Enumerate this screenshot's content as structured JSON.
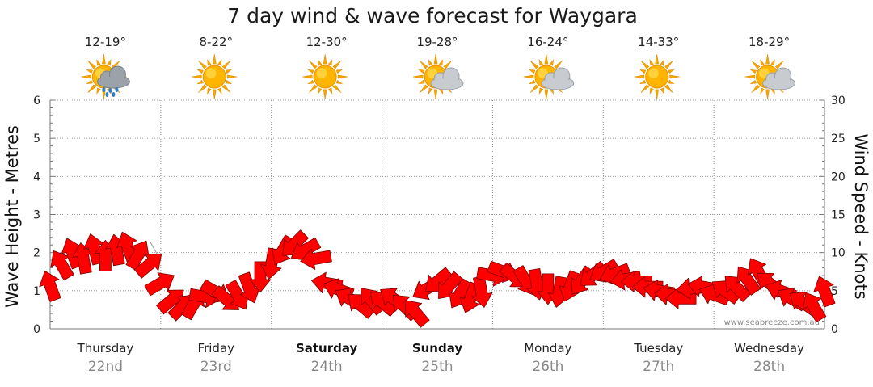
{
  "chart_data": {
    "type": "line",
    "title": "7 day wind & wave forecast for Waygara",
    "ylabel_left": "Wave Height - Metres",
    "ylabel_right": "Wind Speed - Knots",
    "ylim_left": [
      0,
      6
    ],
    "ylim_right": [
      0,
      30
    ],
    "yticks_left": [
      "0",
      "1",
      "2",
      "3",
      "4",
      "5",
      "6"
    ],
    "yticks_right": [
      "0",
      "5",
      "10",
      "15",
      "20",
      "25",
      "30"
    ],
    "grid": true,
    "credit": "www.seabreeze.com.au",
    "days": [
      {
        "day": "Thursday",
        "date": "22nd",
        "temp": "12-19°",
        "icon": "sun-cloud-rain-icon",
        "bold": false
      },
      {
        "day": "Friday",
        "date": "23rd",
        "temp": "8-22°",
        "icon": "sun-icon",
        "bold": false
      },
      {
        "day": "Saturday",
        "date": "24th",
        "temp": "12-30°",
        "icon": "sun-icon",
        "bold": true
      },
      {
        "day": "Sunday",
        "date": "25th",
        "temp": "19-28°",
        "icon": "sun-cloud-icon",
        "bold": true
      },
      {
        "day": "Monday",
        "date": "26th",
        "temp": "16-24°",
        "icon": "sun-cloud-icon",
        "bold": false
      },
      {
        "day": "Tuesday",
        "date": "27th",
        "temp": "14-33°",
        "icon": "sun-icon",
        "bold": false
      },
      {
        "day": "Wednesday",
        "date": "28th",
        "temp": "18-29°",
        "icon": "sun-cloud-icon",
        "bold": false
      }
    ],
    "series": [
      {
        "name": "Wind Speed - Knots",
        "axis": "right",
        "points": [
          {
            "x": 0.0,
            "y": 5.7,
            "dir": 250
          },
          {
            "x": 0.1,
            "y": 8.5,
            "dir": 240
          },
          {
            "x": 0.2,
            "y": 10.0,
            "dir": 250
          },
          {
            "x": 0.3,
            "y": 9.3,
            "dir": 260
          },
          {
            "x": 0.4,
            "y": 10.5,
            "dir": 255
          },
          {
            "x": 0.5,
            "y": 9.6,
            "dir": 270
          },
          {
            "x": 0.6,
            "y": 10.4,
            "dir": 260
          },
          {
            "x": 0.7,
            "y": 10.8,
            "dir": 250
          },
          {
            "x": 0.8,
            "y": 9.8,
            "dir": 300
          },
          {
            "x": 0.9,
            "y": 8.5,
            "dir": 320
          },
          {
            "x": 1.0,
            "y": 6.0,
            "dir": 330
          },
          {
            "x": 1.1,
            "y": 3.8,
            "dir": 320
          },
          {
            "x": 1.2,
            "y": 3.0,
            "dir": 315
          },
          {
            "x": 1.3,
            "y": 3.3,
            "dir": 300
          },
          {
            "x": 1.4,
            "y": 4.2,
            "dir": 10
          },
          {
            "x": 1.5,
            "y": 4.8,
            "dir": 30
          },
          {
            "x": 1.6,
            "y": 3.8,
            "dir": 40
          },
          {
            "x": 1.7,
            "y": 4.3,
            "dir": 60
          },
          {
            "x": 1.8,
            "y": 5.3,
            "dir": 70
          },
          {
            "x": 1.9,
            "y": 6.8,
            "dir": 90
          },
          {
            "x": 2.0,
            "y": 8.5,
            "dir": 100
          },
          {
            "x": 2.1,
            "y": 10.2,
            "dir": 120
          },
          {
            "x": 2.2,
            "y": 11.0,
            "dir": 135
          },
          {
            "x": 2.3,
            "y": 10.3,
            "dir": 150
          },
          {
            "x": 2.4,
            "y": 9.2,
            "dir": 170
          },
          {
            "x": 2.5,
            "y": 6.0,
            "dir": 190
          },
          {
            "x": 2.6,
            "y": 5.2,
            "dir": 200
          },
          {
            "x": 2.7,
            "y": 4.0,
            "dir": 210
          },
          {
            "x": 2.8,
            "y": 3.2,
            "dir": 220
          },
          {
            "x": 2.9,
            "y": 3.8,
            "dir": 230
          },
          {
            "x": 3.0,
            "y": 3.5,
            "dir": 220
          },
          {
            "x": 3.1,
            "y": 4.0,
            "dir": 215
          },
          {
            "x": 3.2,
            "y": 3.0,
            "dir": 225
          },
          {
            "x": 3.3,
            "y": 2.2,
            "dir": 230
          },
          {
            "x": 3.4,
            "y": 5.2,
            "dir": 150
          },
          {
            "x": 3.5,
            "y": 6.2,
            "dir": 140
          },
          {
            "x": 3.6,
            "y": 5.5,
            "dir": 130
          },
          {
            "x": 3.7,
            "y": 4.5,
            "dir": 120
          },
          {
            "x": 3.8,
            "y": 4.0,
            "dir": 110
          },
          {
            "x": 3.9,
            "y": 4.8,
            "dir": 80
          },
          {
            "x": 4.0,
            "y": 7.0,
            "dir": 10
          },
          {
            "x": 4.1,
            "y": 7.5,
            "dir": 20
          },
          {
            "x": 4.2,
            "y": 6.8,
            "dir": 40
          },
          {
            "x": 4.3,
            "y": 6.2,
            "dir": 60
          },
          {
            "x": 4.4,
            "y": 5.8,
            "dir": 80
          },
          {
            "x": 4.5,
            "y": 5.2,
            "dir": 90
          },
          {
            "x": 4.6,
            "y": 4.8,
            "dir": 100
          },
          {
            "x": 4.7,
            "y": 5.5,
            "dir": 110
          },
          {
            "x": 4.8,
            "y": 6.2,
            "dir": 125
          },
          {
            "x": 4.9,
            "y": 7.0,
            "dir": 140
          },
          {
            "x": 5.0,
            "y": 7.5,
            "dir": 150
          },
          {
            "x": 5.1,
            "y": 7.2,
            "dir": 160
          },
          {
            "x": 5.2,
            "y": 6.5,
            "dir": 170
          },
          {
            "x": 5.3,
            "y": 6.2,
            "dir": 180
          },
          {
            "x": 5.4,
            "y": 5.5,
            "dir": 180
          },
          {
            "x": 5.5,
            "y": 5.0,
            "dir": 190
          },
          {
            "x": 5.6,
            "y": 4.5,
            "dir": 185
          },
          {
            "x": 5.7,
            "y": 4.0,
            "dir": 180
          },
          {
            "x": 5.8,
            "y": 5.3,
            "dir": 175
          },
          {
            "x": 5.9,
            "y": 5.5,
            "dir": 190
          },
          {
            "x": 6.0,
            "y": 4.5,
            "dir": 200
          },
          {
            "x": 6.1,
            "y": 5.0,
            "dir": 215
          },
          {
            "x": 6.2,
            "y": 5.5,
            "dir": 225
          },
          {
            "x": 6.3,
            "y": 6.5,
            "dir": 235
          },
          {
            "x": 6.4,
            "y": 7.5,
            "dir": 240
          },
          {
            "x": 6.5,
            "y": 6.0,
            "dir": 220
          },
          {
            "x": 6.6,
            "y": 5.0,
            "dir": 200
          },
          {
            "x": 6.7,
            "y": 4.0,
            "dir": 210
          },
          {
            "x": 6.8,
            "y": 3.5,
            "dir": 215
          },
          {
            "x": 6.9,
            "y": 3.0,
            "dir": 240
          },
          {
            "x": 7.0,
            "y": 5.0,
            "dir": 250
          }
        ]
      }
    ],
    "wave_height_m": [
      {
        "x": 0.9,
        "y": 2.3
      },
      {
        "x": 1.0,
        "y": 1.8
      }
    ]
  }
}
